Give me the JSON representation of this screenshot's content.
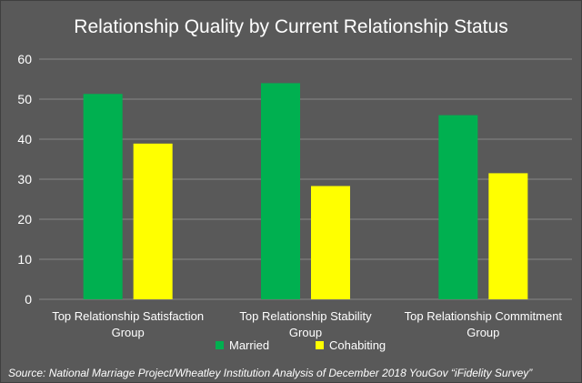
{
  "chart_data": {
    "type": "bar",
    "title": "Relationship Quality by Current Relationship Status",
    "categories": [
      "Top Relationship Satisfaction Group",
      "Top Relationship Stability Group",
      "Top Relationship Commitment Group"
    ],
    "series": [
      {
        "name": "Married",
        "values": [
          51.3,
          54.0,
          46.0
        ],
        "color": "#00b050"
      },
      {
        "name": "Cohabiting",
        "values": [
          38.9,
          28.3,
          31.5
        ],
        "color": "#ffff00"
      }
    ],
    "ylim": [
      0,
      60
    ],
    "yticks": [
      "0",
      "10",
      "20",
      "30",
      "40",
      "50",
      "60"
    ],
    "grid": true,
    "legend_position": "bottom"
  },
  "source": "Source: National Marriage Project/Wheatley Institution Analysis of December 2018 YouGov “iFidelity Survey”",
  "colors": {
    "background": "#595959",
    "gridline": "#878787",
    "text": "#ffffff"
  }
}
